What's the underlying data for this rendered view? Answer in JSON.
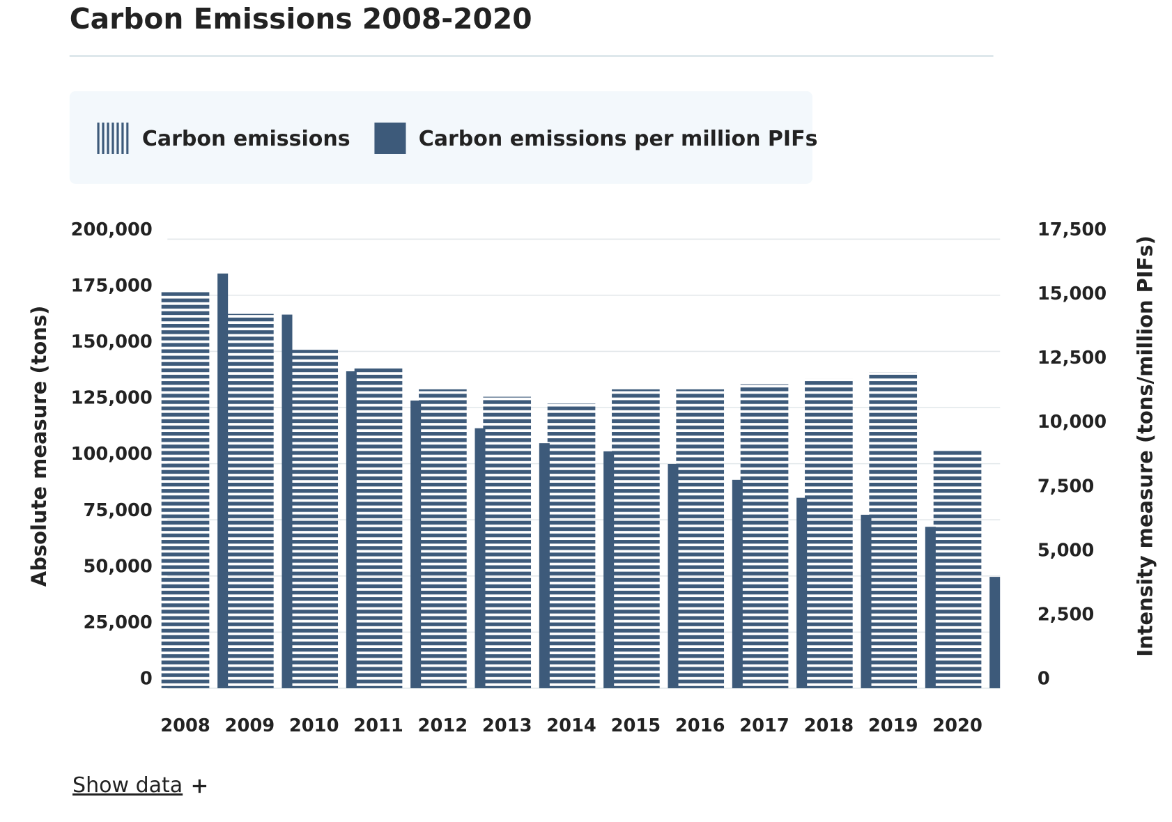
{
  "chart_data": {
    "type": "bar",
    "title": "Carbon Emissions 2008-2020",
    "categories": [
      "2008",
      "2009",
      "2010",
      "2011",
      "2012",
      "2013",
      "2014",
      "2015",
      "2016",
      "2017",
      "2018",
      "2019",
      "2020"
    ],
    "series": [
      {
        "name": "Carbon emissions",
        "color": "#3d5a7a",
        "pattern": "striped",
        "values": [
          176400,
          166700,
          150700,
          142400,
          133100,
          129800,
          126800,
          133100,
          133100,
          135400,
          137800,
          140800,
          106500
        ]
      },
      {
        "name": "Carbon emissions per million PIFs",
        "color": "#3d5a7a",
        "axis": "y2",
        "values": [
          16160,
          14560,
          12350,
          11210,
          10130,
          9550,
          9230,
          8740,
          8120,
          7420,
          6760,
          6290,
          4340
        ]
      }
    ],
    "y_label": "Absolute measure (tons)",
    "y2_label": "Intensity measure (tons/million PIFs)",
    "ylim": [
      0,
      200000
    ],
    "yticks": [
      0,
      {
        "value": 25000,
        "label": "25,000"
      },
      {
        "value": 50000,
        "label": "50,000"
      },
      {
        "value": 75000,
        "label": "75,000"
      },
      {
        "value": 100000,
        "label": "100,000"
      },
      {
        "value": 125000,
        "label": "125,000"
      },
      {
        "value": 150000,
        "label": "150,000"
      },
      {
        "value": 175000,
        "label": "175,000"
      },
      {
        "value": 200000,
        "label": "200,000"
      }
    ],
    "y2lim": [
      0,
      17500
    ],
    "y2ticks": [
      0,
      {
        "value": 2500,
        "label": "2,500"
      },
      {
        "value": 5000,
        "label": "5,000"
      },
      {
        "value": 7500,
        "label": "7,500"
      },
      {
        "value": 10000,
        "label": "10,000"
      },
      {
        "value": 12500,
        "label": "12,500"
      },
      {
        "value": 15000,
        "label": "15,000"
      },
      {
        "value": 17500,
        "label": "17,500"
      }
    ],
    "grid": true
  },
  "show_data_label": "Show data"
}
